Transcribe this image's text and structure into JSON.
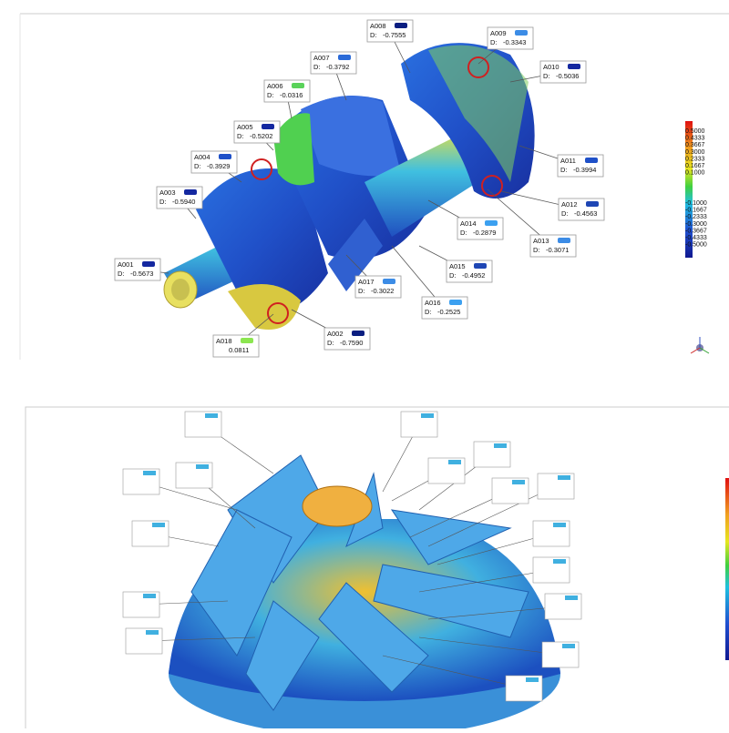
{
  "inspection": {
    "callouts": [
      {
        "label": "A001",
        "d_label": "D:",
        "d": "-0.5673",
        "color": "#1428a0"
      },
      {
        "label": "A002",
        "d_label": "D:",
        "d": "-0.7590",
        "color": "#0a1e80"
      },
      {
        "label": "A003",
        "d_label": "D:",
        "d": "-0.5940",
        "color": "#1428a0"
      },
      {
        "label": "A004",
        "d_label": "D:",
        "d": "-0.3929",
        "color": "#1e50c8"
      },
      {
        "label": "A005",
        "d_label": "D:",
        "d": "-0.5202",
        "color": "#1428a0"
      },
      {
        "label": "A006",
        "d_label": "D:",
        "d": "-0.0316",
        "color": "#5ad25a"
      },
      {
        "label": "A007",
        "d_label": "D:",
        "d": "-0.3792",
        "color": "#2a6ad8"
      },
      {
        "label": "A008",
        "d_label": "D:",
        "d": "-0.7555",
        "color": "#0a1e80"
      },
      {
        "label": "A009",
        "d_label": "D:",
        "d": "-0.3343",
        "color": "#3c8ce6"
      },
      {
        "label": "A010",
        "d_label": "D:",
        "d": "-0.5036",
        "color": "#1428a0"
      },
      {
        "label": "A011",
        "d_label": "D:",
        "d": "-0.3994",
        "color": "#1e50c8"
      },
      {
        "label": "A012",
        "d_label": "D:",
        "d": "-0.4563",
        "color": "#1e46b4"
      },
      {
        "label": "A013",
        "d_label": "D:",
        "d": "-0.3071",
        "color": "#3c8ce6"
      },
      {
        "label": "A014",
        "d_label": "D:",
        "d": "-0.2879",
        "color": "#3ca0f0"
      },
      {
        "label": "A015",
        "d_label": "D:",
        "d": "-0.4952",
        "color": "#1e46b4"
      },
      {
        "label": "A016",
        "d_label": "D:",
        "d": "-0.2525",
        "color": "#3ca0f0"
      },
      {
        "label": "A017",
        "d_label": "D:",
        "d": "-0.3022",
        "color": "#3c8ce6"
      },
      {
        "label": "A018",
        "d_label": "",
        "d": "0.0811",
        "color": "#8ce650"
      }
    ],
    "legend": {
      "positive": [
        "0.5000",
        "0.4333",
        "0.3667",
        "0.3000",
        "0.2333",
        "0.1667",
        "0.1000"
      ],
      "negative": [
        "-0.1000",
        "-0.1667",
        "-0.2333",
        "-0.3000",
        "-0.3667",
        "-0.4333",
        "-0.5000"
      ]
    }
  }
}
